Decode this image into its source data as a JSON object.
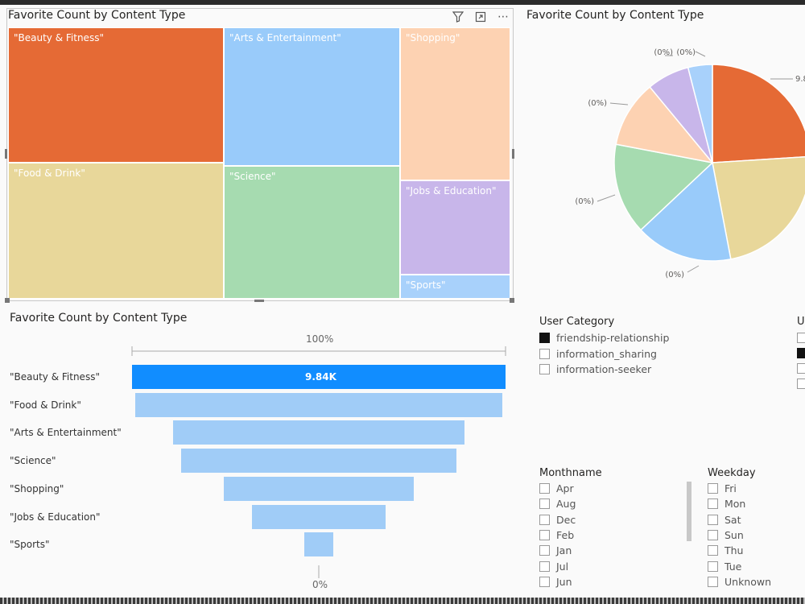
{
  "treemap": {
    "title": "Favorite Count by Content Type",
    "tiles": [
      {
        "label": "\"Beauty & Fitness\"",
        "color": "#e56a35"
      },
      {
        "label": "\"Food & Drink\"",
        "color": "#e8d79a"
      },
      {
        "label": "\"Arts & Entertainment\"",
        "color": "#99cbfa"
      },
      {
        "label": "\"Science\"",
        "color": "#a6dbb0"
      },
      {
        "label": "\"Shopping\"",
        "color": "#fdd2b2"
      },
      {
        "label": "\"Jobs & Education\"",
        "color": "#c8b6ea"
      },
      {
        "label": "\"Sports\"",
        "color": "#a8d1fb"
      }
    ]
  },
  "pie": {
    "title": "Favorite Count by Content Type",
    "labels": [
      "9.8",
      "(0%)",
      "(0%)",
      "(0%)",
      "(0%)",
      "(0%)"
    ],
    "colors": [
      "#e56a35",
      "#e8d79a",
      "#99cbfa",
      "#a6dbb0",
      "#fdd2b2",
      "#c8b6ea",
      "#a8d1fb"
    ]
  },
  "chart_data": {
    "type": "bar",
    "title": "Favorite Count by Content Type",
    "categories": [
      "\"Beauty & Fitness\"",
      "\"Food & Drink\"",
      "\"Arts & Entertainment\"",
      "\"Science\"",
      "\"Shopping\"",
      "\"Jobs & Education\"",
      "\"Sports\""
    ],
    "values": [
      9840,
      9690,
      7680,
      7240,
      5000,
      3510,
      780
    ],
    "value_label": "9.84K",
    "top_label": "100%",
    "bottom_label": "0%"
  },
  "user_category": {
    "title": "User Category",
    "items": [
      {
        "label": "friendship-relationship",
        "checked": true
      },
      {
        "label": "information_sharing",
        "checked": false
      },
      {
        "label": "information-seeker",
        "checked": false
      }
    ]
  },
  "right_slicer_title": "U",
  "monthname": {
    "title": "Monthname",
    "items": [
      "Apr",
      "Aug",
      "Dec",
      "Feb",
      "Jan",
      "Jul",
      "Jun"
    ]
  },
  "weekday": {
    "title": "Weekday",
    "items": [
      "Fri",
      "Mon",
      "Sat",
      "Sun",
      "Thu",
      "Tue",
      "Unknown"
    ]
  }
}
